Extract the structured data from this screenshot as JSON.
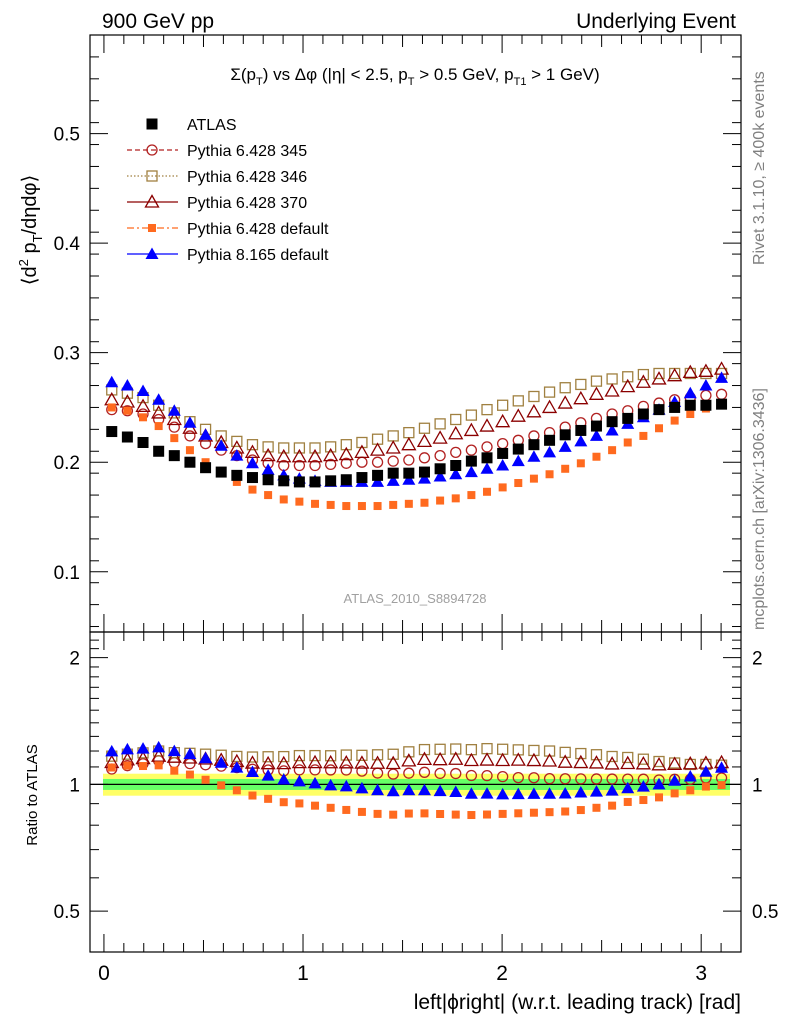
{
  "header": {
    "left": "900 GeV pp",
    "right": "Underlying Event"
  },
  "side": {
    "rivet": "Rivet 3.1.10, ≥ 400k events",
    "mcplots": "mcplots.cern.ch [arXiv:1306.3436]"
  },
  "colors": {
    "atlas": "#000000",
    "p345": "#b22222",
    "p346": "#a08040",
    "p370": "#8b0000",
    "p_default": "#ff6a1f",
    "p8": "#0000ff",
    "band_inner": "#66ff66",
    "band_outer": "#ffff66"
  },
  "chart_data": [
    {
      "type": "scatter",
      "panel": "main",
      "title": "Σ(pT) vs Δφ (|η| < 2.5, pT > 0.5 GeV, pT1 > 1 GeV)",
      "title_parts": {
        "sum": "Σ(p",
        "sub_t": "T",
        "vs": ") vs Δφ (|η| < 2.5, p",
        "gt1": " > 0.5 GeV, p",
        "sub_t1": "T1",
        "gt2": " > 1 GeV)"
      },
      "ylabel": "⟨d2 pT/dηdφ⟩",
      "ylabel_parts": {
        "open": "⟨d",
        "sup2": "2",
        "p": " p",
        "subT": "T",
        "rest": "/dηdφ⟩"
      },
      "ylim": [
        0.045,
        0.59
      ],
      "yticks": [
        {
          "v": 0.1,
          "label": "0.1"
        },
        {
          "v": 0.2,
          "label": "0.2"
        },
        {
          "v": 0.3,
          "label": "0.3"
        },
        {
          "v": 0.4,
          "label": "0.4"
        },
        {
          "v": 0.5,
          "label": "0.5"
        }
      ],
      "watermark": "ATLAS_2010_S8894728",
      "legend_position": "top-left",
      "series": [
        {
          "name": "ATLAS",
          "key": "atlas",
          "marker": "square-filled",
          "line": "none",
          "values": [
            0.228,
            0.223,
            0.218,
            0.21,
            0.206,
            0.2,
            0.195,
            0.191,
            0.188,
            0.186,
            0.184,
            0.183,
            0.182,
            0.182,
            0.183,
            0.184,
            0.186,
            0.188,
            0.19,
            0.19,
            0.191,
            0.194,
            0.197,
            0.201,
            0.204,
            0.208,
            0.212,
            0.216,
            0.22,
            0.225,
            0.229,
            0.233,
            0.237,
            0.24,
            0.244,
            0.248,
            0.25,
            0.252,
            0.252,
            0.253
          ]
        },
        {
          "name": "Pythia 6.428 345",
          "key": "p345",
          "marker": "circle-open",
          "line": "dashed",
          "values": [
            0.248,
            0.247,
            0.244,
            0.239,
            0.232,
            0.224,
            0.217,
            0.211,
            0.206,
            0.202,
            0.199,
            0.197,
            0.197,
            0.197,
            0.198,
            0.199,
            0.2,
            0.2,
            0.201,
            0.202,
            0.204,
            0.206,
            0.209,
            0.211,
            0.214,
            0.217,
            0.22,
            0.224,
            0.227,
            0.232,
            0.236,
            0.24,
            0.244,
            0.247,
            0.251,
            0.254,
            0.257,
            0.259,
            0.261,
            0.262
          ]
        },
        {
          "name": "Pythia 6.428 346",
          "key": "p346",
          "marker": "square-open",
          "line": "dotted",
          "values": [
            0.266,
            0.263,
            0.259,
            0.252,
            0.245,
            0.237,
            0.23,
            0.224,
            0.219,
            0.216,
            0.214,
            0.213,
            0.213,
            0.213,
            0.214,
            0.216,
            0.218,
            0.221,
            0.224,
            0.227,
            0.231,
            0.235,
            0.239,
            0.243,
            0.248,
            0.252,
            0.256,
            0.26,
            0.264,
            0.268,
            0.271,
            0.274,
            0.276,
            0.278,
            0.28,
            0.281,
            0.281,
            0.281,
            0.281,
            0.281
          ]
        },
        {
          "name": "Pythia 6.428 370",
          "key": "p370",
          "marker": "triangle-open",
          "line": "solid",
          "values": [
            0.257,
            0.255,
            0.251,
            0.245,
            0.239,
            0.231,
            0.224,
            0.218,
            0.213,
            0.209,
            0.206,
            0.205,
            0.205,
            0.205,
            0.206,
            0.207,
            0.209,
            0.211,
            0.213,
            0.216,
            0.219,
            0.222,
            0.226,
            0.229,
            0.233,
            0.237,
            0.242,
            0.246,
            0.25,
            0.254,
            0.258,
            0.262,
            0.265,
            0.269,
            0.273,
            0.276,
            0.279,
            0.282,
            0.283,
            0.285
          ]
        },
        {
          "name": "Pythia 6.428 default",
          "key": "p_default",
          "marker": "square-filled-small",
          "line": "dashdot",
          "values": [
            0.25,
            0.247,
            0.241,
            0.233,
            0.222,
            0.211,
            0.2,
            0.19,
            0.182,
            0.175,
            0.17,
            0.166,
            0.164,
            0.162,
            0.161,
            0.16,
            0.16,
            0.16,
            0.161,
            0.162,
            0.163,
            0.165,
            0.167,
            0.17,
            0.173,
            0.177,
            0.181,
            0.185,
            0.189,
            0.194,
            0.199,
            0.205,
            0.211,
            0.218,
            0.224,
            0.231,
            0.238,
            0.244,
            0.249,
            0.252
          ]
        },
        {
          "name": "Pythia 8.165 default",
          "key": "p8",
          "marker": "triangle-filled",
          "line": "solid",
          "values": [
            0.273,
            0.27,
            0.265,
            0.257,
            0.247,
            0.236,
            0.225,
            0.215,
            0.206,
            0.199,
            0.193,
            0.188,
            0.185,
            0.183,
            0.182,
            0.182,
            0.182,
            0.182,
            0.183,
            0.184,
            0.185,
            0.187,
            0.189,
            0.191,
            0.194,
            0.197,
            0.201,
            0.205,
            0.209,
            0.214,
            0.219,
            0.224,
            0.229,
            0.235,
            0.241,
            0.248,
            0.255,
            0.263,
            0.27,
            0.277
          ]
        }
      ]
    },
    {
      "type": "scatter",
      "panel": "ratio",
      "ylabel": "Ratio to ATLAS",
      "ylim": [
        0.4,
        2.3
      ],
      "yticks": [
        {
          "v": 0.5,
          "label": "0.5"
        },
        {
          "v": 1,
          "label": "1"
        },
        {
          "v": 2,
          "label": "2"
        }
      ],
      "xlabel": "left|ϕright| (w.r.t. leading track) [rad]",
      "xlim": [
        -0.07,
        3.2
      ],
      "xticks": [
        {
          "v": 0,
          "label": "0"
        },
        {
          "v": 1,
          "label": "1"
        },
        {
          "v": 2,
          "label": "2"
        },
        {
          "v": 3,
          "label": "3"
        }
      ],
      "band_inner": 0.03,
      "band_outer": 0.06
    }
  ]
}
